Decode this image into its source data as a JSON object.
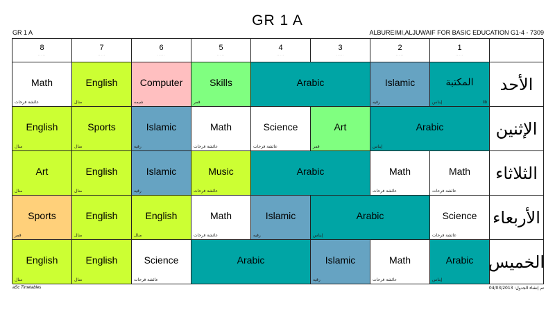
{
  "title": "GR 1 A",
  "class_label": "GR 1 A",
  "school": "ALBUREIMI,ALJUWAIF FOR BASIC EDUCATION G1-4  -  7309",
  "footer_left": "aSc Timetables",
  "footer_right": "تم إنشاء الجدول: 04/03/2013",
  "colors": {
    "white": "#ffffff",
    "lime": "#ccff33",
    "pink": "#ffbfc0",
    "green": "#80ff80",
    "teal": "#00a5a5",
    "blue": "#66a3c2",
    "orange": "#ffd07a"
  },
  "periods": [
    "8",
    "7",
    "6",
    "5",
    "4",
    "3",
    "2",
    "1"
  ],
  "period_sub": "·····",
  "days": [
    "الأحد",
    "الإثنين",
    "الثلاثاء",
    "الأربعاء",
    "الخميس"
  ],
  "lessons": [
    [
      {
        "subject": "Math",
        "teacher": "عائشة فرحات",
        "color": "white",
        "span": 1
      },
      {
        "subject": "English",
        "teacher": "منال",
        "color": "lime",
        "span": 1
      },
      {
        "subject": "Computer",
        "teacher": "شيمه",
        "color": "pink",
        "span": 1
      },
      {
        "subject": "Skills",
        "teacher": "قمر",
        "color": "green",
        "span": 1
      },
      {
        "subject": "Arabic",
        "teacher": "",
        "color": "teal",
        "span": 2
      },
      {
        "subject": "Islamic",
        "teacher": "رقيه",
        "color": "blue",
        "span": 1
      },
      {
        "subject": "المكتبة",
        "teacher": "إيناس",
        "room": "lib",
        "color": "teal",
        "span": 1
      }
    ],
    [
      {
        "subject": "English",
        "teacher": "منال",
        "color": "lime",
        "span": 1
      },
      {
        "subject": "Sports",
        "teacher": "منال",
        "color": "lime",
        "span": 1
      },
      {
        "subject": "Islamic",
        "teacher": "رقيه",
        "color": "blue",
        "span": 1
      },
      {
        "subject": "Math",
        "teacher": "عائشة فرحات",
        "color": "white",
        "span": 1
      },
      {
        "subject": "Science",
        "teacher": "عائشة فرحات",
        "color": "white",
        "span": 1
      },
      {
        "subject": "Art",
        "teacher": "قمر",
        "color": "green",
        "span": 1
      },
      {
        "subject": "Arabic",
        "teacher": "إيناس",
        "color": "teal",
        "span": 2
      }
    ],
    [
      {
        "subject": "Art",
        "teacher": "منال",
        "color": "lime",
        "span": 1
      },
      {
        "subject": "English",
        "teacher": "منال",
        "color": "lime",
        "span": 1
      },
      {
        "subject": "Islamic",
        "teacher": "رقيه",
        "color": "blue",
        "span": 1
      },
      {
        "subject": "Music",
        "teacher": "عائشة فرحات",
        "color": "lime",
        "span": 1
      },
      {
        "subject": "Arabic",
        "teacher": "",
        "color": "teal",
        "span": 2
      },
      {
        "subject": "Math",
        "teacher": "عائشة فرحات",
        "color": "white",
        "span": 1
      },
      {
        "subject": "Math",
        "teacher": "عائشة فرحات",
        "color": "white",
        "span": 1
      }
    ],
    [
      {
        "subject": "Sports",
        "teacher": "قمر",
        "color": "orange",
        "span": 1
      },
      {
        "subject": "English",
        "teacher": "منال",
        "color": "lime",
        "span": 1
      },
      {
        "subject": "English",
        "teacher": "منال",
        "color": "lime",
        "span": 1
      },
      {
        "subject": "Math",
        "teacher": "عائشة فرحات",
        "color": "white",
        "span": 1
      },
      {
        "subject": "Islamic",
        "teacher": "رقيه",
        "color": "blue",
        "span": 1
      },
      {
        "subject": "Arabic",
        "teacher": "إيناس",
        "color": "teal",
        "span": 2
      },
      {
        "subject": "Science",
        "teacher": "عائشة فرحات",
        "color": "white",
        "span": 1
      }
    ],
    [
      {
        "subject": "English",
        "teacher": "منال",
        "color": "lime",
        "span": 1
      },
      {
        "subject": "English",
        "teacher": "منال",
        "color": "lime",
        "span": 1
      },
      {
        "subject": "Science",
        "teacher": "عائشة فرحات",
        "color": "white",
        "span": 1
      },
      {
        "subject": "Arabic",
        "teacher": "",
        "color": "teal",
        "span": 2
      },
      {
        "subject": "Islamic",
        "teacher": "رقيه",
        "color": "blue",
        "span": 1
      },
      {
        "subject": "Math",
        "teacher": "عائشة فرحات",
        "color": "white",
        "span": 1
      },
      {
        "subject": "Arabic",
        "teacher": "إيناس",
        "color": "teal",
        "span": 1
      }
    ]
  ]
}
